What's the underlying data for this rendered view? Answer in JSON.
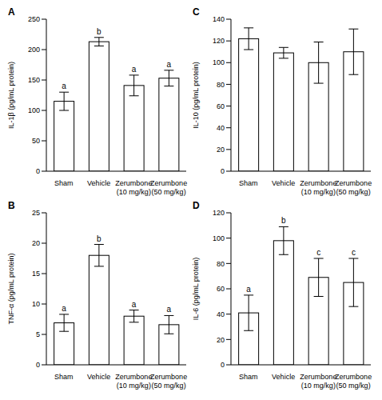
{
  "chart_data": [
    {
      "type": "bar",
      "title": "A",
      "y_label": "IL-1β (pg/mL protein)",
      "categories": [
        "Sham",
        "Vehicle",
        "Zerumbone (10 mg/kg)",
        "Zerumbone (50 mg/kg)"
      ],
      "values": [
        115,
        213,
        141,
        153
      ],
      "errors": [
        15,
        7,
        17,
        13
      ],
      "annotations": [
        "a",
        "b",
        "a",
        "a"
      ],
      "color": "#ffffff",
      "ylim": [
        0,
        250
      ],
      "yticks": [
        0,
        50,
        100,
        150,
        200,
        250
      ]
    },
    {
      "type": "bar",
      "title": "B",
      "y_label": "TNF-α (pg/mL protein)",
      "categories": [
        "Sham",
        "Vehicle",
        "Zerumbone (10 mg/kg)",
        "Zerumbone (50 mg/kg)"
      ],
      "values": [
        6.9,
        18,
        8,
        6.6
      ],
      "errors": [
        1.4,
        1.8,
        1,
        1.5
      ],
      "annotations": [
        "a",
        "b",
        "a",
        "a"
      ],
      "color": "#ffffff",
      "ylim": [
        0,
        25
      ],
      "yticks": [
        0,
        5,
        10,
        15,
        20,
        25
      ]
    },
    {
      "type": "bar",
      "title": "C",
      "y_label": "IL-10 (pg/mL protein)",
      "categories": [
        "Sham",
        "Vehicle",
        "Zerumbone (10 mg/kg)",
        "Zerumbone (50 mg/kg)"
      ],
      "values": [
        122,
        109,
        100,
        110
      ],
      "errors": [
        10,
        5,
        19,
        21
      ],
      "color": "#ffffff",
      "ylim": [
        0,
        140
      ],
      "yticks": [
        0,
        20,
        40,
        60,
        80,
        100,
        120,
        140
      ]
    },
    {
      "type": "bar",
      "title": "D",
      "y_label": "IL-6 (pg/mL protein)",
      "categories": [
        "Sham",
        "Vehicle",
        "Zerumbone (10 mg/kg)",
        "Zerumbone (50 mg/kg)"
      ],
      "values": [
        41,
        98,
        69,
        65
      ],
      "errors": [
        14,
        11,
        15,
        19
      ],
      "annotations": [
        "a",
        "b",
        "c",
        "c"
      ],
      "color": "#ffffff",
      "ylim": [
        0,
        120
      ],
      "yticks": [
        0,
        20,
        40,
        60,
        80,
        100,
        120
      ]
    }
  ]
}
